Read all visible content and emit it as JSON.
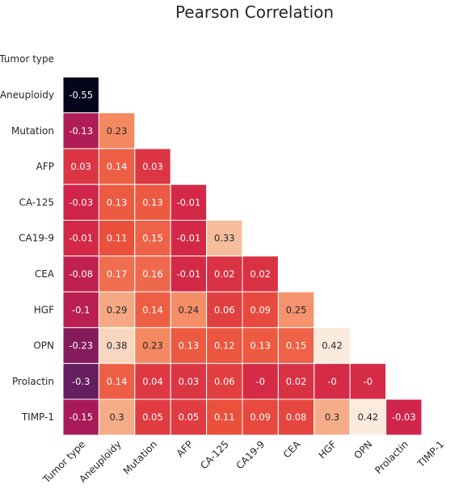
{
  "chart_data": {
    "type": "heatmap",
    "title": "Pearson Correlation",
    "variables": [
      "Tumor type",
      "Aneuploidy",
      "Mutation",
      "AFP",
      "CA-125",
      "CA19-9",
      "CEA",
      "HGF",
      "OPN",
      "Prolactin",
      "TIMP-1"
    ],
    "mask": "upper-triangle-including-diagonal",
    "value_labels": [
      [],
      [
        "-0.55"
      ],
      [
        "-0.13",
        "0.23"
      ],
      [
        "0.03",
        "0.14",
        "0.03"
      ],
      [
        "-0.03",
        "0.13",
        "0.13",
        "-0.01"
      ],
      [
        "-0.01",
        "0.11",
        "0.15",
        "-0.01",
        "0.33"
      ],
      [
        "-0.08",
        "0.17",
        "0.16",
        "-0.01",
        "0.02",
        "0.02"
      ],
      [
        "-0.1",
        "0.29",
        "0.14",
        "0.24",
        "0.06",
        "0.09",
        "0.25"
      ],
      [
        "-0.23",
        "0.38",
        "0.23",
        "0.13",
        "0.12",
        "0.13",
        "0.15",
        "0.42"
      ],
      [
        "-0.3",
        "0.14",
        "0.04",
        "0.03",
        "0.06",
        "-0",
        "0.02",
        "-0",
        "-0"
      ],
      [
        "-0.15",
        "0.3",
        "0.05",
        "0.05",
        "0.11",
        "0.09",
        "0.08",
        "0.3",
        "0.42",
        "-0.03"
      ]
    ],
    "values": [
      [],
      [
        -0.55
      ],
      [
        -0.13,
        0.23
      ],
      [
        0.03,
        0.14,
        0.03
      ],
      [
        -0.03,
        0.13,
        0.13,
        -0.01
      ],
      [
        -0.01,
        0.11,
        0.15,
        -0.01,
        0.33
      ],
      [
        -0.08,
        0.17,
        0.16,
        -0.01,
        0.02,
        0.02
      ],
      [
        -0.1,
        0.29,
        0.14,
        0.24,
        0.06,
        0.09,
        0.25
      ],
      [
        -0.23,
        0.38,
        0.23,
        0.13,
        0.12,
        0.13,
        0.15,
        0.42
      ],
      [
        -0.3,
        0.14,
        0.04,
        0.03,
        0.06,
        0,
        0.02,
        0,
        0
      ],
      [
        -0.15,
        0.3,
        0.05,
        0.05,
        0.11,
        0.09,
        0.08,
        0.3,
        0.42,
        -0.03
      ]
    ],
    "color_range": [
      -0.55,
      0.42
    ],
    "colormap": "rocket"
  }
}
